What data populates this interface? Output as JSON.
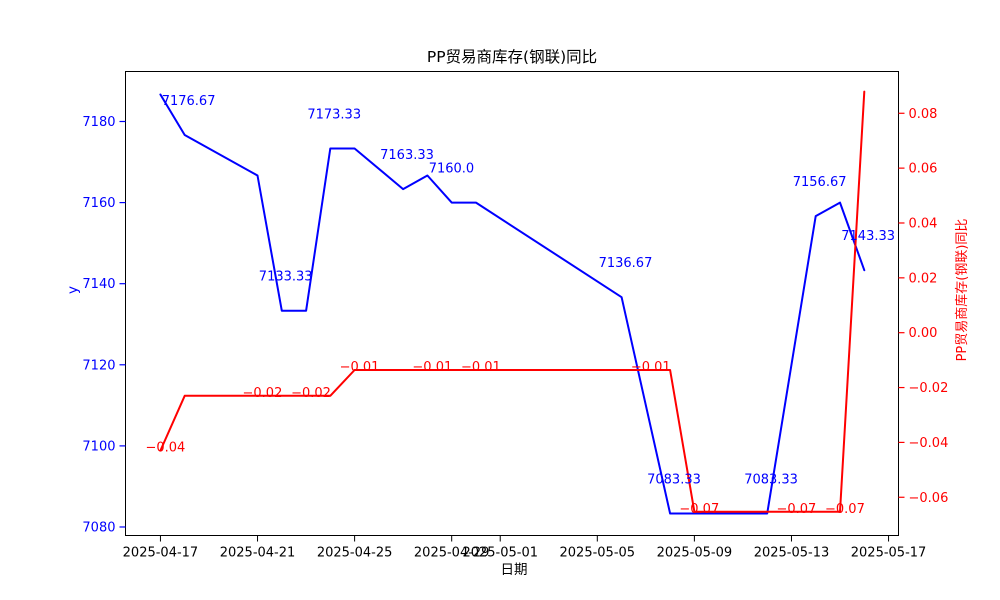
{
  "title": "PP贸易商库存(钢联)同比",
  "x_axis": {
    "label": "日期",
    "ticks": [
      {
        "day": 0,
        "label": "2025-04-17"
      },
      {
        "day": 4,
        "label": "2025-04-21"
      },
      {
        "day": 8,
        "label": "2025-04-25"
      },
      {
        "day": 12,
        "label": "2025-04-29"
      },
      {
        "day": 14,
        "label": "2025-05-01"
      },
      {
        "day": 18,
        "label": "2025-05-05"
      },
      {
        "day": 22,
        "label": "2025-05-09"
      },
      {
        "day": 26,
        "label": "2025-05-13"
      },
      {
        "day": 30,
        "label": "2025-05-17"
      }
    ]
  },
  "left_axis": {
    "label": "y",
    "color": "#0000ff",
    "ticks": [
      {
        "v": 7080,
        "label": "7080"
      },
      {
        "v": 7100,
        "label": "7100"
      },
      {
        "v": 7120,
        "label": "7120"
      },
      {
        "v": 7140,
        "label": "7140"
      },
      {
        "v": 7160,
        "label": "7160"
      },
      {
        "v": 7180,
        "label": "7180"
      }
    ]
  },
  "right_axis": {
    "label": "PP贸易商库存(钢联)同比",
    "color": "#ff0000",
    "ticks": [
      {
        "v": 0.08,
        "label": "0.08"
      },
      {
        "v": 0.06,
        "label": "0.06"
      },
      {
        "v": 0.04,
        "label": "0.04"
      },
      {
        "v": 0.02,
        "label": "0.02"
      },
      {
        "v": 0.0,
        "label": "0.00"
      },
      {
        "v": -0.02,
        "label": "−0.02"
      },
      {
        "v": -0.04,
        "label": "−0.04"
      },
      {
        "v": -0.06,
        "label": "−0.06"
      }
    ]
  },
  "chart_data": {
    "type": "line",
    "title": "PP贸易商库存(钢联)同比",
    "xlabel": "日期",
    "ylabel_left": "y",
    "ylabel_right": "PP贸易商库存(钢联)同比",
    "x_unit": "days since 2025-04-17",
    "xlim": [
      -1.44,
      30.41
    ],
    "left_ylim": [
      7077.9,
      7192.33
    ],
    "right_ylim": [
      -0.07394,
      0.09523
    ],
    "grid": false,
    "legend": false,
    "series": [
      {
        "name": "PP贸易商库存(钢联)",
        "axis": "left",
        "color": "#0000ff",
        "points": [
          {
            "date": "2025-04-17",
            "day": 0,
            "value": 7186.67
          },
          {
            "date": "2025-04-18",
            "day": 1,
            "value": 7176.67
          },
          {
            "date": "2025-04-21",
            "day": 4,
            "value": 7166.67
          },
          {
            "date": "2025-04-22",
            "day": 5,
            "value": 7133.33
          },
          {
            "date": "2025-04-23",
            "day": 6,
            "value": 7133.33
          },
          {
            "date": "2025-04-24",
            "day": 7,
            "value": 7173.33
          },
          {
            "date": "2025-04-25",
            "day": 8,
            "value": 7173.33
          },
          {
            "date": "2025-04-27",
            "day": 10,
            "value": 7163.33
          },
          {
            "date": "2025-04-28",
            "day": 11,
            "value": 7166.67
          },
          {
            "date": "2025-04-29",
            "day": 12,
            "value": 7160.0
          },
          {
            "date": "2025-04-30",
            "day": 13,
            "value": 7160.0
          },
          {
            "date": "2025-05-06",
            "day": 19,
            "value": 7136.67
          },
          {
            "date": "2025-05-08",
            "day": 21,
            "value": 7083.33
          },
          {
            "date": "2025-05-12",
            "day": 25,
            "value": 7083.33
          },
          {
            "date": "2025-05-14",
            "day": 27,
            "value": 7156.67
          },
          {
            "date": "2025-05-15",
            "day": 28,
            "value": 7160.0
          },
          {
            "date": "2025-05-16",
            "day": 29,
            "value": 7143.33
          }
        ]
      },
      {
        "name": "同比",
        "axis": "right",
        "color": "#ff0000",
        "points": [
          {
            "date": "2025-04-17",
            "day": 0,
            "value": -0.043
          },
          {
            "date": "2025-04-18",
            "day": 1,
            "value": -0.023
          },
          {
            "date": "2025-04-21",
            "day": 4,
            "value": -0.023
          },
          {
            "date": "2025-04-23",
            "day": 6,
            "value": -0.023
          },
          {
            "date": "2025-04-24",
            "day": 7,
            "value": -0.023
          },
          {
            "date": "2025-04-25",
            "day": 8,
            "value": -0.0136
          },
          {
            "date": "2025-04-28",
            "day": 11,
            "value": -0.0136
          },
          {
            "date": "2025-04-30",
            "day": 13,
            "value": -0.0136
          },
          {
            "date": "2025-05-07",
            "day": 20,
            "value": -0.0136
          },
          {
            "date": "2025-05-08",
            "day": 21,
            "value": -0.0136
          },
          {
            "date": "2025-05-09",
            "day": 22,
            "value": -0.0653
          },
          {
            "date": "2025-05-13",
            "day": 26,
            "value": -0.0653
          },
          {
            "date": "2025-05-15",
            "day": 28,
            "value": -0.0653
          },
          {
            "date": "2025-05-16",
            "day": 29,
            "value": 0.0879
          }
        ]
      }
    ],
    "annotations": [
      {
        "series": 0,
        "day": 1,
        "value": 7176.67,
        "text": "7176.67"
      },
      {
        "series": 0,
        "day": 5,
        "value": 7133.33,
        "text": "7133.33"
      },
      {
        "series": 0,
        "day": 7,
        "value": 7173.33,
        "text": "7173.33"
      },
      {
        "series": 0,
        "day": 10,
        "value": 7163.33,
        "text": "7163.33"
      },
      {
        "series": 0,
        "day": 12,
        "value": 7160.0,
        "text": "7160.0"
      },
      {
        "series": 0,
        "day": 19,
        "value": 7136.67,
        "text": "7136.67"
      },
      {
        "series": 0,
        "day": 21,
        "value": 7083.33,
        "text": "7083.33"
      },
      {
        "series": 0,
        "day": 25,
        "value": 7083.33,
        "text": "7083.33"
      },
      {
        "series": 0,
        "day": 27,
        "value": 7156.67,
        "text": "7156.67"
      },
      {
        "series": 0,
        "day": 29,
        "value": 7143.33,
        "text": "7143.33"
      },
      {
        "series": 1,
        "day": 0,
        "value": -0.043,
        "text": "−0.04"
      },
      {
        "series": 1,
        "day": 4,
        "value": -0.023,
        "text": "−0.02"
      },
      {
        "series": 1,
        "day": 6,
        "value": -0.023,
        "text": "−0.02"
      },
      {
        "series": 1,
        "day": 8,
        "value": -0.0136,
        "text": "−0.01"
      },
      {
        "series": 1,
        "day": 11,
        "value": -0.0136,
        "text": "−0.01"
      },
      {
        "series": 1,
        "day": 13,
        "value": -0.0136,
        "text": "−0.01"
      },
      {
        "series": 1,
        "day": 20,
        "value": -0.0136,
        "text": "−0.01"
      },
      {
        "series": 1,
        "day": 22,
        "value": -0.0653,
        "text": "−0.07"
      },
      {
        "series": 1,
        "day": 26,
        "value": -0.0653,
        "text": "−0.07"
      },
      {
        "series": 1,
        "day": 28,
        "value": -0.0653,
        "text": "−0.07"
      }
    ]
  }
}
